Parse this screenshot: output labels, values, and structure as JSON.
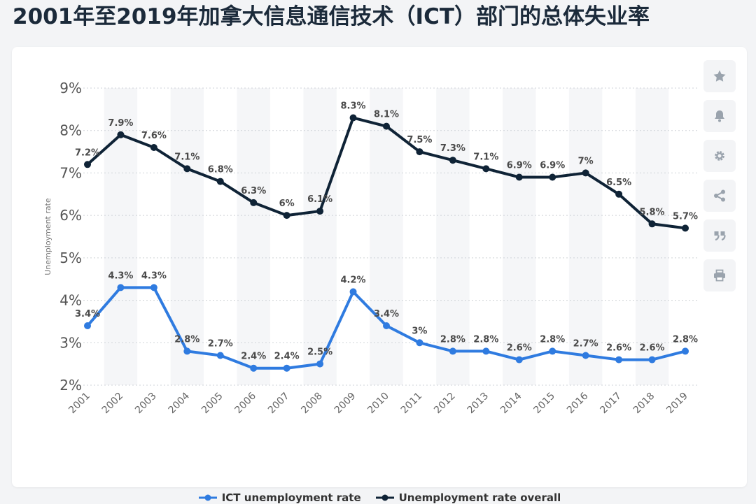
{
  "title": "2001年至2019年加拿大信息通信技术（ICT）部门的总体失业率",
  "toolbar": {
    "icons": [
      "star-icon",
      "bell-icon",
      "gear-icon",
      "share-icon",
      "quote-icon",
      "print-icon"
    ]
  },
  "chart_data": {
    "type": "line",
    "title": "",
    "xlabel": "",
    "ylabel": "Unemployment rate",
    "categories": [
      "2001",
      "2002",
      "2003",
      "2004",
      "2005",
      "2006",
      "2007",
      "2008",
      "2009",
      "2010",
      "2011",
      "2012",
      "2013",
      "2014",
      "2015",
      "2016",
      "2017",
      "2018",
      "2019"
    ],
    "ylim": [
      2,
      9
    ],
    "yticks": [
      "2%",
      "3%",
      "4%",
      "5%",
      "6%",
      "7%",
      "8%",
      "9%"
    ],
    "ytick_values": [
      2,
      3,
      4,
      5,
      6,
      7,
      8,
      9
    ],
    "grid": true,
    "legend_position": "bottom-center",
    "series": [
      {
        "name": "ICT unemployment rate",
        "color": "#2f7be0",
        "values": [
          3.4,
          4.3,
          4.3,
          2.8,
          2.7,
          2.4,
          2.4,
          2.5,
          4.2,
          3.4,
          3,
          2.8,
          2.8,
          2.6,
          2.8,
          2.7,
          2.6,
          2.6,
          2.8
        ],
        "labels": [
          "3.4%",
          "4.3%",
          "4.3%",
          "2.8%",
          "2.7%",
          "2.4%",
          "2.4%",
          "2.5%",
          "4.2%",
          "3.4%",
          "3%",
          "2.8%",
          "2.8%",
          "2.6%",
          "2.8%",
          "2.7%",
          "2.6%",
          "2.6%",
          "2.8%"
        ]
      },
      {
        "name": "Unemployment rate overall",
        "color": "#0f2336",
        "values": [
          7.2,
          7.9,
          7.6,
          7.1,
          6.8,
          6.3,
          6,
          6.1,
          8.3,
          8.1,
          7.5,
          7.3,
          7.1,
          6.9,
          6.9,
          7,
          6.5,
          5.8,
          5.7
        ],
        "labels": [
          "7.2%",
          "7.9%",
          "7.6%",
          "7.1%",
          "6.8%",
          "6.3%",
          "6%",
          "6.1%",
          "8.3%",
          "8.1%",
          "7.5%",
          "7.3%",
          "7.1%",
          "6.9%",
          "6.9%",
          "7%",
          "6.5%",
          "5.8%",
          "5.7%"
        ]
      }
    ]
  }
}
